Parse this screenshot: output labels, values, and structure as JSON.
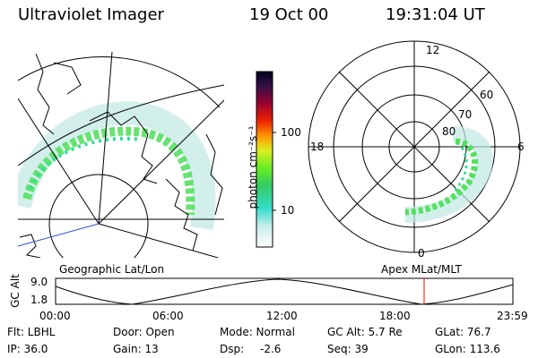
{
  "header": {
    "title": "Ultraviolet Imager",
    "date": "19 Oct 00",
    "time": "19:31:04 UT"
  },
  "colorbar": {
    "label": "photon cm⁻²s⁻¹",
    "ticks": [
      "100",
      "10"
    ]
  },
  "geo_panel": {
    "caption": "Geographic Lat/Lon"
  },
  "polar_panel": {
    "caption": "Apex MLat/MLT",
    "mlt_labels": {
      "top": "12",
      "left": "18",
      "right": "6",
      "bottom": "0"
    },
    "lat_labels": [
      "60",
      "70",
      "80"
    ]
  },
  "timeline": {
    "ylabel": "GC Alt",
    "y_ticks": [
      "9.0",
      "1.8"
    ],
    "x_ticks": [
      "00:00",
      "06:00",
      "12:00",
      "18:00",
      "23:59"
    ],
    "marker_time": "19:31"
  },
  "status": {
    "flt": "Flt: LBHL",
    "ip": "IP: 36.0",
    "door": "Door: Open",
    "gain": "Gain: 13",
    "mode": "Mode: Normal",
    "dsp_label": "Dsp:",
    "dsp_value": "-2.6",
    "gc_alt": "GC Alt: 5.7 Re",
    "seq": "Seq: 39",
    "glat": "GLat: 76.7",
    "glon": "GLon: 113.6"
  },
  "colors": {
    "marker": "#ff0000",
    "aurora_low": "#66ee33",
    "aurora_mid": "#33dd99",
    "aurora_faint": "#bfe8e4"
  }
}
